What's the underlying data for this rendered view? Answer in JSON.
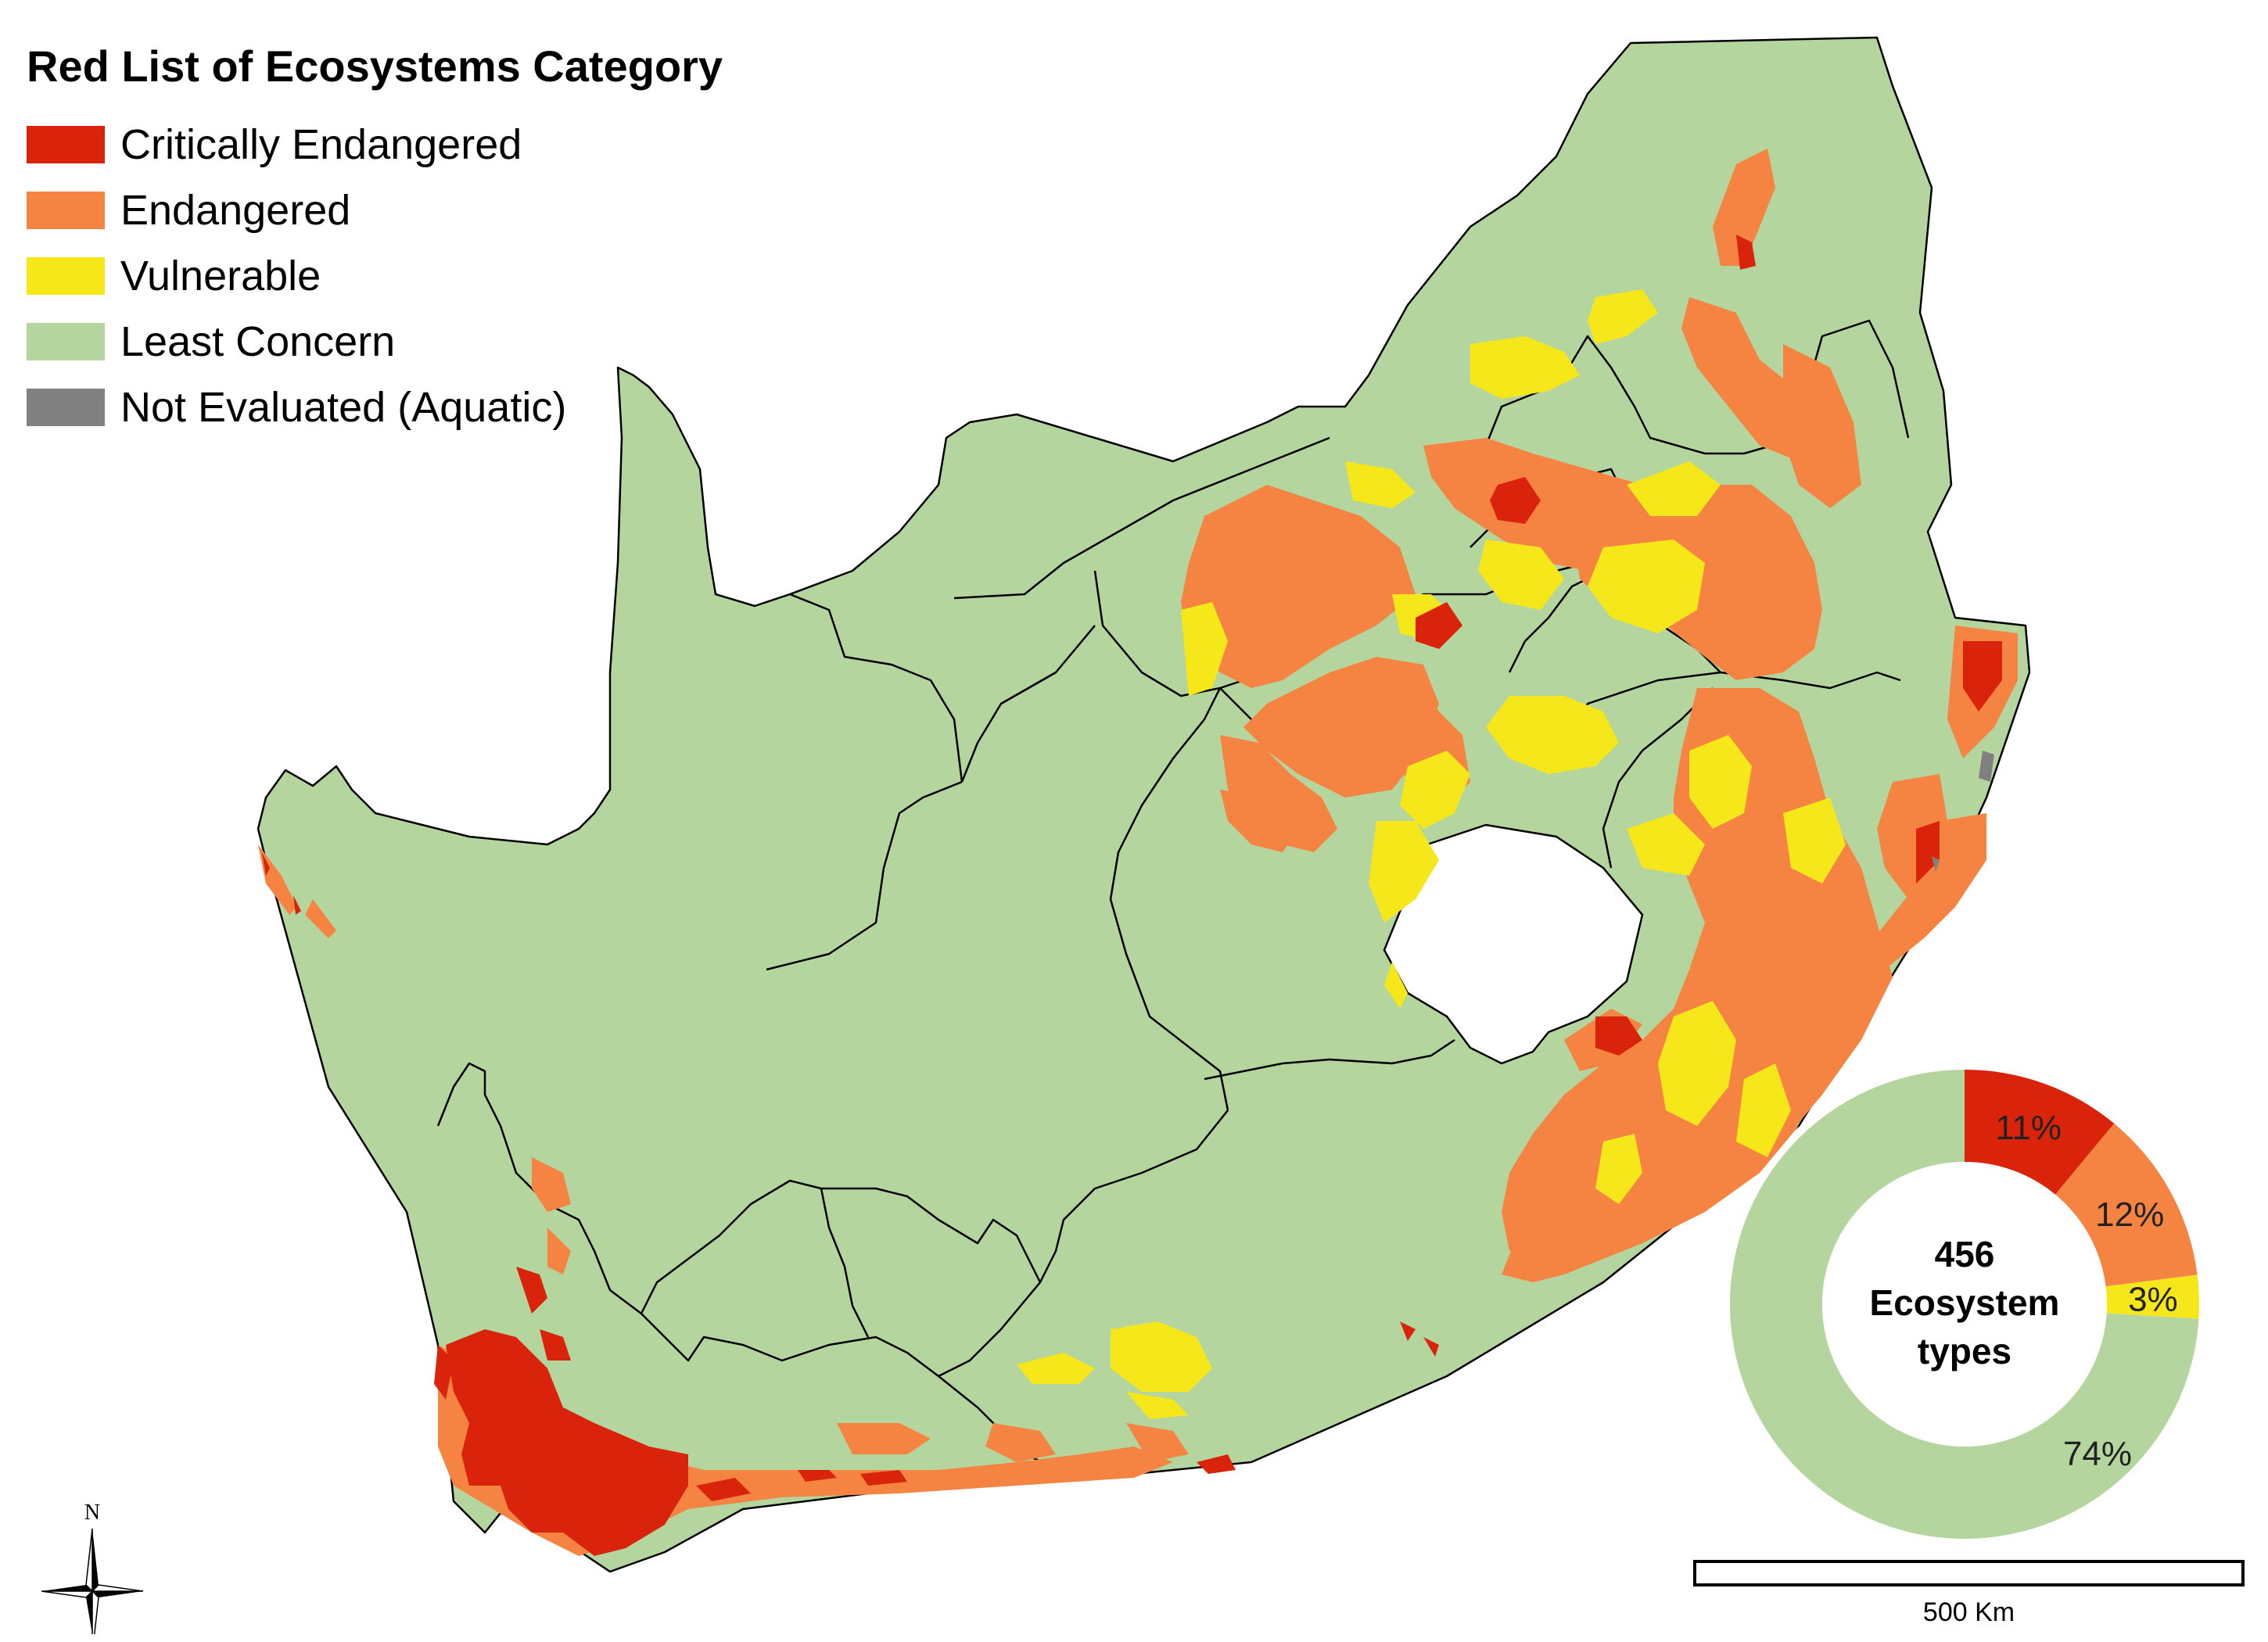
{
  "legend": {
    "title": "Red List of Ecosystems Category",
    "items": [
      {
        "label": "Critically Endangered",
        "color": "#d9240b"
      },
      {
        "label": "Endangered",
        "color": "#f58443"
      },
      {
        "label": "Vulnerable",
        "color": "#f6e71b"
      },
      {
        "label": "Least Concern",
        "color": "#b5d59e"
      },
      {
        "label": "Not Evaluated (Aquatic)",
        "color": "#808080"
      }
    ]
  },
  "north_arrow": {
    "label": "N"
  },
  "scale": {
    "label": "500 Km"
  },
  "chart_data": {
    "type": "pie",
    "center_lines": [
      "456",
      "Ecosystem",
      "types"
    ],
    "slices": [
      {
        "category": "Critically Endangered",
        "value": 11,
        "label": "11%",
        "color": "#d9240b"
      },
      {
        "category": "Endangered",
        "value": 12,
        "label": "12%",
        "color": "#f58443"
      },
      {
        "category": "Vulnerable",
        "value": 3,
        "label": "3%",
        "color": "#f6e71b"
      },
      {
        "category": "Least Concern",
        "value": 74,
        "label": "74%",
        "color": "#b5d59e"
      }
    ]
  }
}
